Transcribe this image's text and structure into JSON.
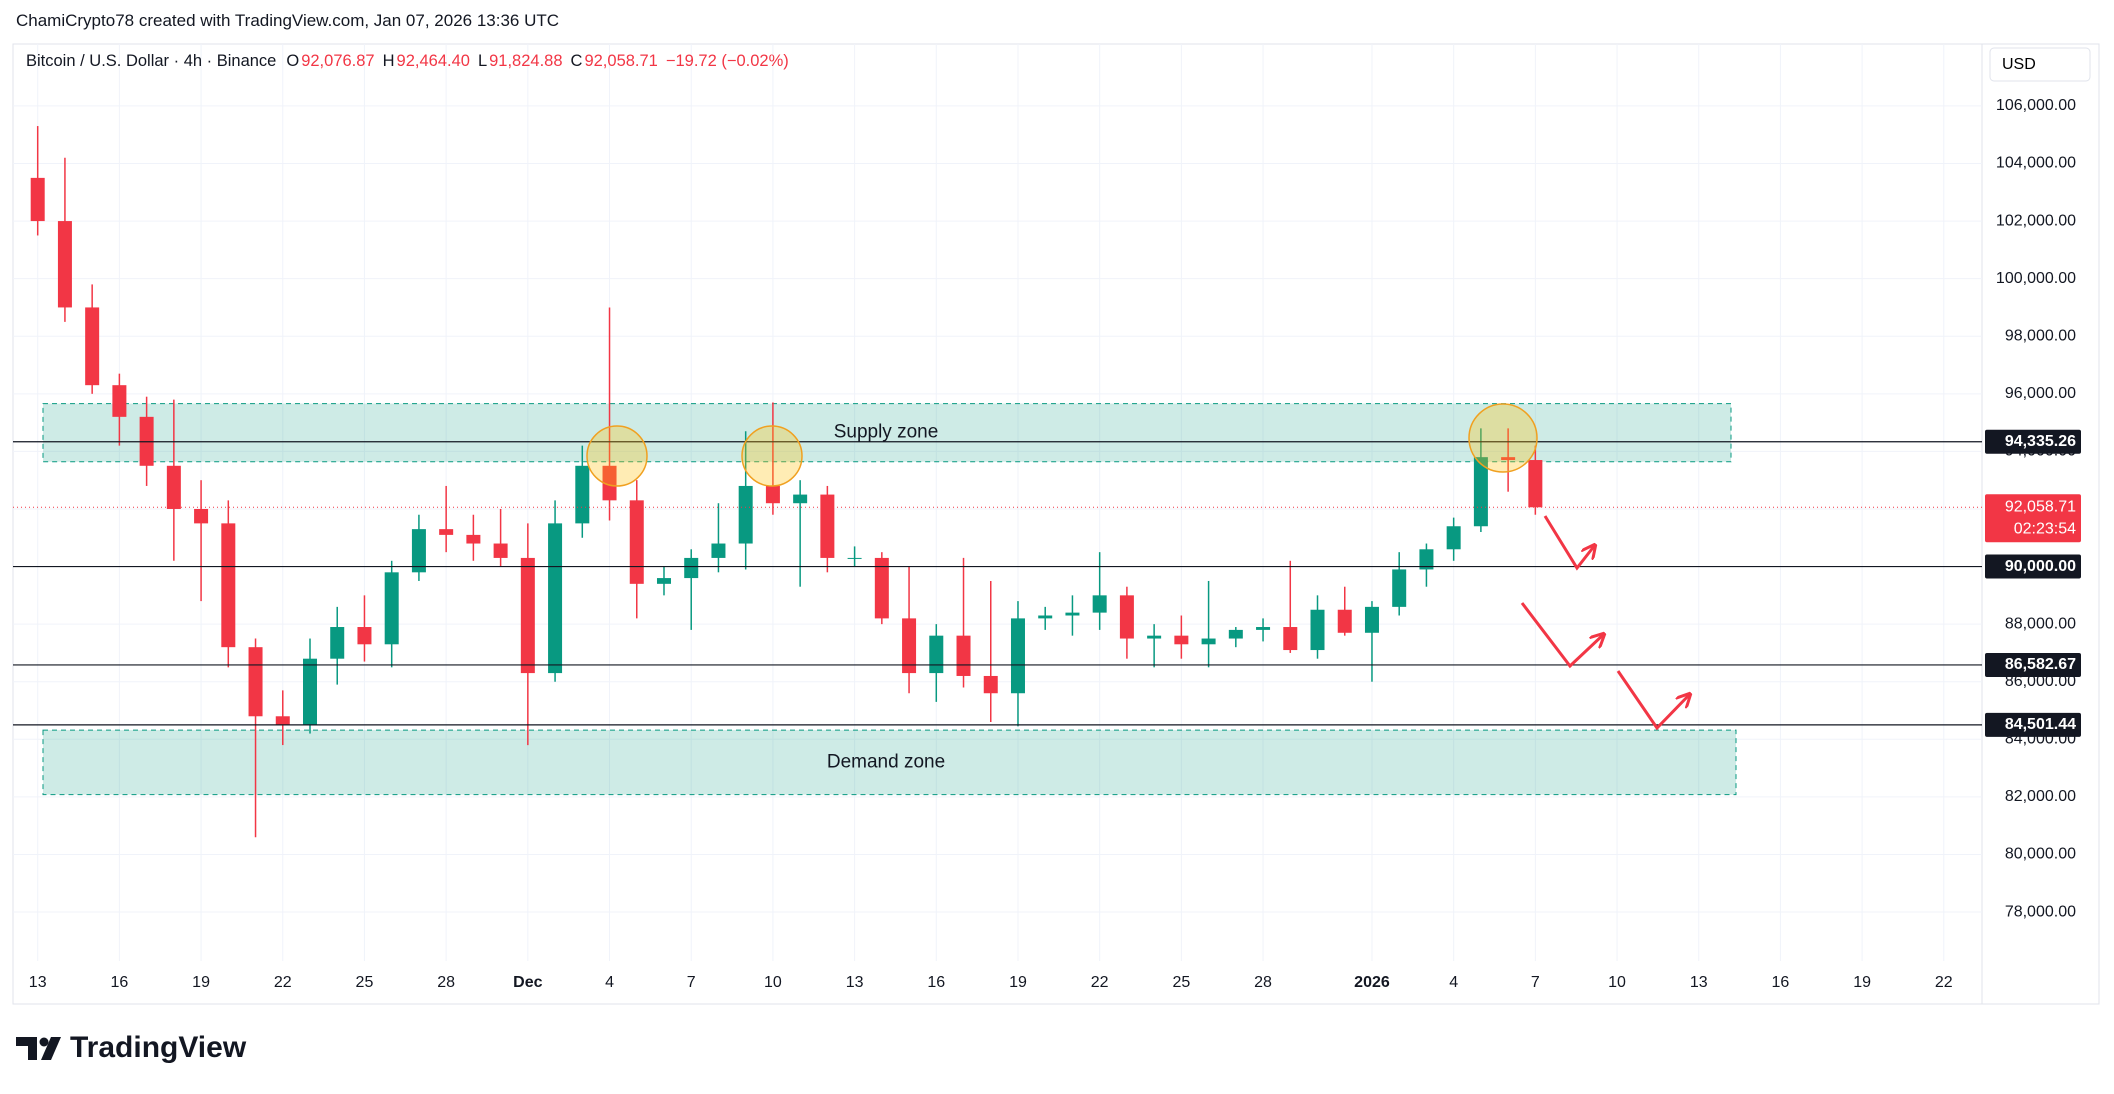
{
  "header": {
    "credit": "ChamiCrypto78 created with TradingView.com, Jan 07, 2026 13:36 UTC",
    "symbol": "Bitcoin / U.S. Dollar · 4h · Binance",
    "ohlc": [
      {
        "key": "O",
        "value": "92,076.87"
      },
      {
        "key": "H",
        "value": "92,464.40"
      },
      {
        "key": "L",
        "value": "91,824.88"
      },
      {
        "key": "C",
        "value": "92,058.71"
      }
    ],
    "change": "−19.72 (−0.02%)"
  },
  "chart_data": {
    "type": "candlestick",
    "currency": "USD",
    "categories": [
      "13",
      null,
      null,
      "16",
      null,
      null,
      "19",
      null,
      null,
      "22",
      null,
      null,
      "25",
      null,
      null,
      "28",
      null,
      null,
      "Dec",
      null,
      null,
      "4",
      null,
      null,
      "7",
      null,
      null,
      "10",
      null,
      null,
      "13",
      null,
      null,
      "16",
      null,
      null,
      "19",
      null,
      null,
      "22",
      null,
      null,
      "25",
      null,
      null,
      "28",
      null,
      null,
      null,
      "2026",
      null,
      null,
      "4",
      null,
      null,
      "7",
      null,
      null,
      "10",
      null,
      null,
      "13",
      null,
      null,
      "16",
      null,
      null,
      "19",
      null,
      null,
      "22",
      null
    ],
    "open": [
      103500,
      102000,
      99000,
      96300,
      95200,
      93500,
      92000,
      91500,
      87200,
      84800,
      84500,
      86800,
      87900,
      87300,
      89800,
      91300,
      91100,
      90800,
      90300,
      86300,
      91500,
      93500,
      92300,
      89400,
      89600,
      90300,
      90800,
      92800,
      92200,
      92500,
      90300,
      90300,
      88200,
      86300,
      87600,
      86200,
      85600,
      88200,
      88300,
      88400,
      89000,
      87500,
      87600,
      87300,
      87500,
      87800,
      87900,
      87100,
      88500,
      87700,
      88600,
      89900,
      90600,
      91400,
      93800,
      93700,
      null,
      null,
      null,
      null,
      null,
      null,
      null,
      null,
      null,
      null,
      null,
      null,
      null,
      null,
      null,
      null
    ],
    "high": [
      105300,
      104200,
      99800,
      96700,
      95900,
      95800,
      93000,
      92300,
      87500,
      85700,
      87500,
      88600,
      89000,
      90200,
      91800,
      92800,
      91800,
      92000,
      91500,
      92300,
      94200,
      99000,
      93000,
      90000,
      90600,
      92200,
      94700,
      95700,
      93000,
      92800,
      90700,
      90500,
      90000,
      88000,
      90300,
      89500,
      88800,
      88600,
      89000,
      90500,
      89300,
      88000,
      88300,
      89500,
      87900,
      88200,
      90200,
      89000,
      89300,
      88800,
      90500,
      90800,
      91700,
      94800,
      94800,
      94200,
      null,
      null,
      null,
      null,
      null,
      null,
      null,
      null,
      null,
      null,
      null,
      null,
      null,
      null,
      null,
      null
    ],
    "low": [
      101500,
      98500,
      96000,
      94200,
      92800,
      90200,
      88800,
      86500,
      80600,
      83800,
      84200,
      85900,
      86700,
      86500,
      89500,
      90500,
      90200,
      90000,
      83800,
      86000,
      91000,
      91600,
      88200,
      89000,
      87800,
      89800,
      89900,
      91800,
      89300,
      89800,
      90000,
      88000,
      85600,
      85300,
      85800,
      84600,
      84450,
      87800,
      87600,
      87800,
      86800,
      86500,
      86800,
      86500,
      87200,
      87400,
      87000,
      86800,
      87600,
      86000,
      88300,
      89300,
      90200,
      91200,
      92600,
      91800,
      null,
      null,
      null,
      null,
      null,
      null,
      null,
      null,
      null,
      null,
      null,
      null,
      null,
      null,
      null,
      null
    ],
    "close": [
      102000,
      99000,
      96300,
      95200,
      93500,
      92000,
      91500,
      87200,
      84800,
      84500,
      86800,
      87900,
      87300,
      89800,
      91300,
      91100,
      90800,
      90300,
      86300,
      91500,
      93500,
      92300,
      89400,
      89600,
      90300,
      90800,
      92800,
      92200,
      92500,
      90300,
      90300,
      88200,
      86300,
      87600,
      86200,
      85600,
      88200,
      88300,
      88400,
      89000,
      87500,
      87600,
      87300,
      87500,
      87800,
      87900,
      87100,
      88500,
      87700,
      88600,
      89900,
      90600,
      91400,
      93800,
      93700,
      92058.71,
      null,
      null,
      null,
      null,
      null,
      null,
      null,
      null,
      null,
      null,
      null,
      null,
      null,
      null,
      null,
      null
    ],
    "up_color": "#089981",
    "down_color": "#f23645",
    "ylim": [
      76300,
      108150
    ],
    "yticks": [
      {
        "value": 78000,
        "label": "78,000.00"
      },
      {
        "value": 80000,
        "label": "80,000.00"
      },
      {
        "value": 82000,
        "label": "82,000.00"
      },
      {
        "value": 84000,
        "label": "84,000.00"
      },
      {
        "value": 86000,
        "label": "86,000.00"
      },
      {
        "value": 88000,
        "label": "88,000.00"
      },
      {
        "value": 90000,
        "label": "90,000.00"
      },
      {
        "value": 92000,
        "label": "92,000.00"
      },
      {
        "value": 94000,
        "label": "94,000.00"
      },
      {
        "value": 96000,
        "label": "96,000.00"
      },
      {
        "value": 98000,
        "label": "98,000.00"
      },
      {
        "value": 100000,
        "label": "100,000.00"
      },
      {
        "value": 102000,
        "label": "102,000.00"
      },
      {
        "value": 104000,
        "label": "104,000.00"
      },
      {
        "value": 106000,
        "label": "106,000.00"
      }
    ],
    "grid": true,
    "levels": [
      {
        "value": 94335.26,
        "label": "94,335.26"
      },
      {
        "value": 90000,
        "label": "90,000.00"
      },
      {
        "value": 86582.67,
        "label": "86,582.67"
      },
      {
        "value": 84501.44,
        "label": "84,501.44"
      }
    ],
    "last_price": {
      "value": 92058.71,
      "label": "92,058.71",
      "countdown": "02:23:54",
      "color": "#f23645"
    },
    "zones": [
      {
        "label": "Supply zone",
        "low": 93640,
        "high": 95660
      },
      {
        "label": "Demand zone",
        "low": 82080,
        "high": 84320
      }
    ]
  },
  "footer": {
    "brand": "TradingView"
  }
}
